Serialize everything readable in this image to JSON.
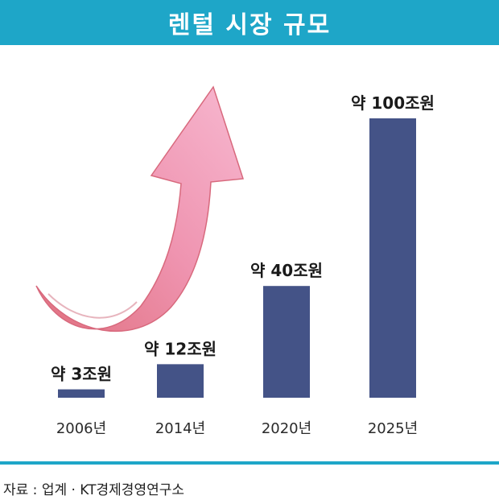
{
  "header": {
    "title": "렌털 시장 규모"
  },
  "chart_data": {
    "type": "bar",
    "title": "렌털 시장 규모",
    "categories": [
      "2006년",
      "2014년",
      "2020년",
      "2025년"
    ],
    "values": [
      3,
      12,
      40,
      100
    ],
    "value_labels": [
      "약 3조원",
      "약 12조원",
      "약 40조원",
      "약 100조원"
    ],
    "unit": "조원",
    "ylim": [
      0,
      100
    ],
    "grid": false,
    "xlabel": "",
    "ylabel": "",
    "annotations": [
      "upward-trend-arrow"
    ]
  },
  "colors": {
    "title_bar": "#1ea6c8",
    "bar": "#445387",
    "arrow_light": "#f2aac2",
    "arrow_dark": "#e06e86"
  },
  "footer": {
    "source": "자료 : 업계 · KT경제경영연구소"
  }
}
